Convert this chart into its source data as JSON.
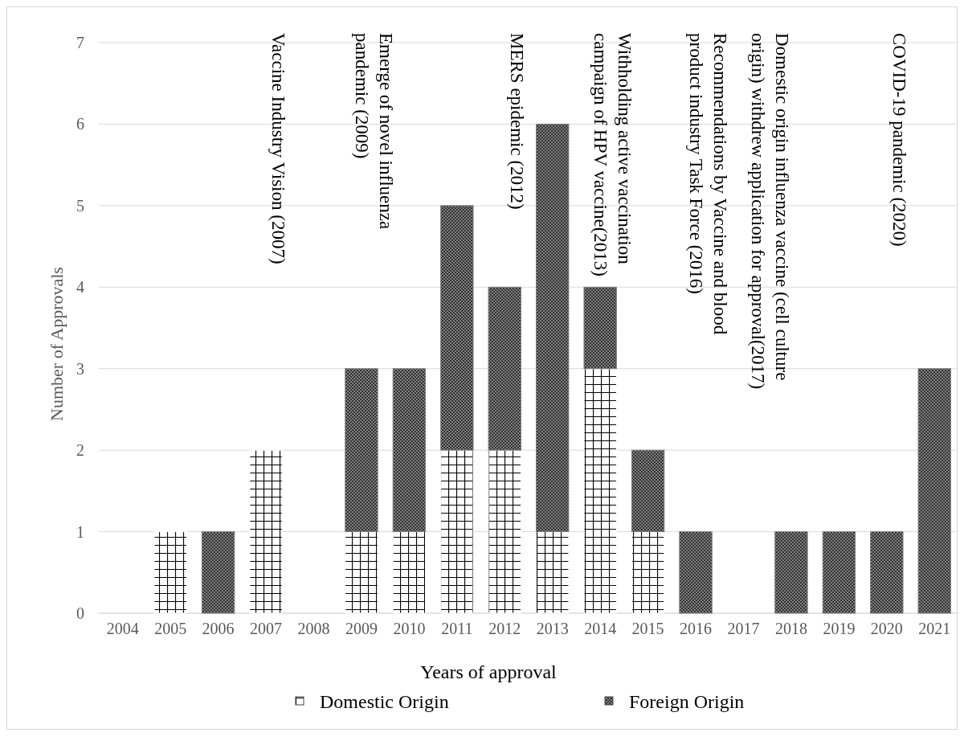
{
  "chart_data": {
    "type": "bar",
    "stacked": true,
    "xlabel": "Years of approval",
    "ylabel": "Number of  Approvals",
    "categories": [
      "2004",
      "2005",
      "2006",
      "2007",
      "2008",
      "2009",
      "2010",
      "2011",
      "2012",
      "2013",
      "2014",
      "2015",
      "2016",
      "2017",
      "2018",
      "2019",
      "2020",
      "2021"
    ],
    "series": [
      {
        "name": "Domestic Origin",
        "color": "#ffffff",
        "values": [
          0,
          1,
          0,
          2,
          0,
          1,
          1,
          2,
          2,
          1,
          3,
          1,
          0,
          0,
          0,
          0,
          0,
          0
        ]
      },
      {
        "name": "Foreign Origin",
        "color": "#7f7f7f",
        "values": [
          0,
          0,
          1,
          0,
          0,
          2,
          2,
          3,
          2,
          5,
          1,
          1,
          1,
          0,
          1,
          1,
          1,
          3
        ]
      }
    ],
    "ylim": [
      0,
      7
    ],
    "yticks": [
      0,
      1,
      2,
      3,
      4,
      5,
      6,
      7
    ],
    "grid": "y",
    "legend": "bottom",
    "annotations": [
      "Vaccine Industry Vision (2007)",
      "Emerge of novel influenza\npandemic (2009)",
      "MERS epidemic (2012)",
      "Withholding active vaccination\ncampaign of HPV vaccine(2013)",
      "Recommendations by Vaccine and blood\nproduct industry Task Force (2016)",
      "Domestic origin influenza vaccine (cell culture\norigin) withdrew application for approval(2017)",
      "COVID-19 pandemic (2020)"
    ]
  }
}
